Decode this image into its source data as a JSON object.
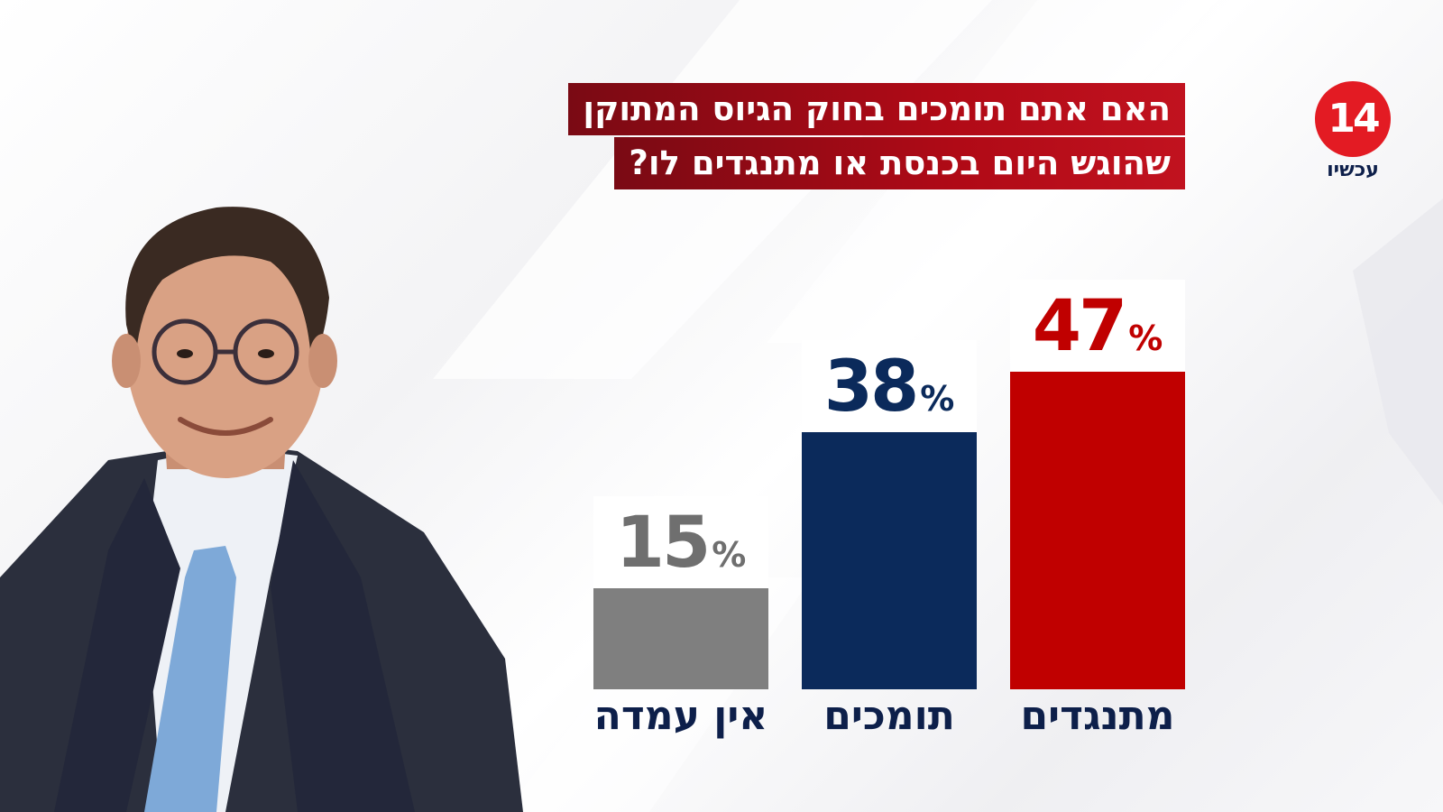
{
  "title_lines": [
    "האם אתם תומכים בחוק הגיוס המתוקן",
    "שהוגש היום בכנסת או מתנגדים לו?"
  ],
  "logo": {
    "number": "14",
    "word": "עכשיו",
    "color": "#e31b23"
  },
  "chart_data": {
    "type": "bar",
    "title": "האם אתם תומכים בחוק הגיוס המתוקן שהוגש היום בכנסת או מתנגדים לו?",
    "categories": [
      "מתנגדים",
      "תומכים",
      "אין עמדה"
    ],
    "values": [
      47,
      38,
      15
    ],
    "unit": "%",
    "colors": [
      "#c00000",
      "#0b2a5b",
      "#7f7f7f"
    ],
    "ylim": [
      0,
      100
    ],
    "grid": false,
    "legend": "none"
  },
  "portrait": {
    "icon": "person-photo"
  },
  "colors": {
    "title_bg": "#b00a16",
    "label_text": "#0d1f4a"
  }
}
